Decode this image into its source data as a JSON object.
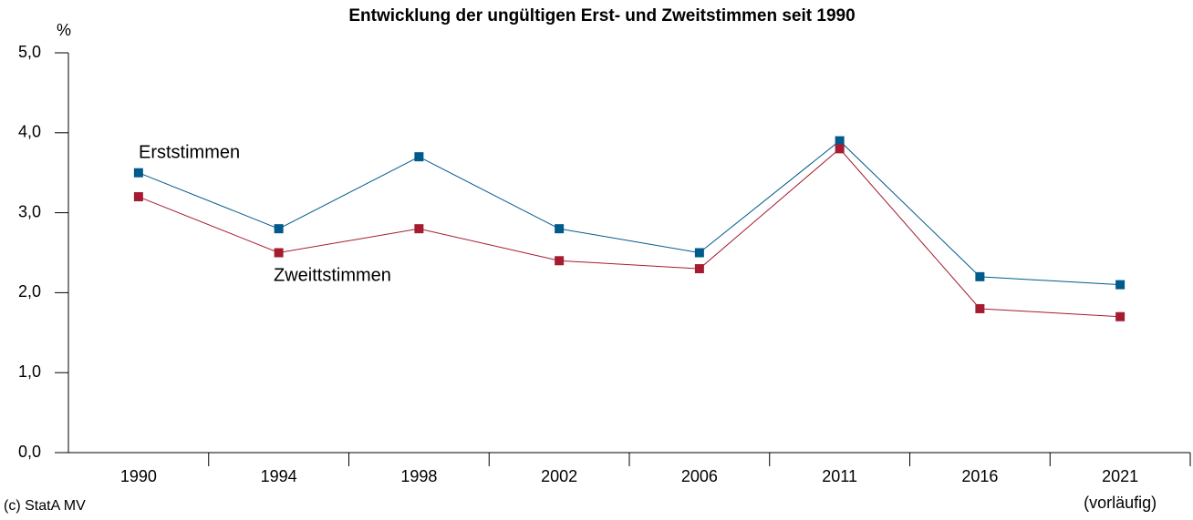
{
  "chart_data": {
    "type": "line",
    "title": "Entwicklung der ungültigen Erst- und Zweitstimmen seit 1990",
    "y_label": "%",
    "source": "(c) StatA MV",
    "categories": [
      "1990",
      "1994",
      "1998",
      "2002",
      "2006",
      "2011",
      "2016",
      "2021"
    ],
    "category_note": "(vorläufig)",
    "series": [
      {
        "name": "Erststimmen",
        "color": "#005a8c",
        "values": [
          3.5,
          2.8,
          3.7,
          2.8,
          2.5,
          3.9,
          2.2,
          2.1
        ]
      },
      {
        "name": "Zweittstimmen",
        "color": "#a51c30",
        "values": [
          3.2,
          2.5,
          2.8,
          2.4,
          2.3,
          3.8,
          1.8,
          1.7
        ]
      }
    ],
    "ylim": [
      0,
      5
    ],
    "yticks": [
      {
        "value": 0,
        "label": "0,0"
      },
      {
        "value": 1,
        "label": "1,0"
      },
      {
        "value": 2,
        "label": "2,0"
      },
      {
        "value": 3,
        "label": "3,0"
      },
      {
        "value": 4,
        "label": "4,0"
      },
      {
        "value": 5,
        "label": "5,0"
      }
    ],
    "grid": false
  }
}
